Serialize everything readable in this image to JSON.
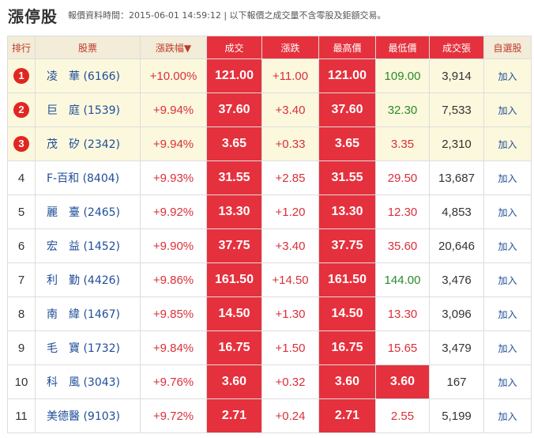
{
  "page": {
    "title": "漲停股",
    "note": "報價資料時間：2015-06-01 14:59:12 | 以下報價之成交量不含零股及鉅額交易。"
  },
  "columns": {
    "rank": "排行",
    "stock": "股票",
    "pct": "漲跌幅▼",
    "price": "成交",
    "change": "漲跌",
    "high": "最高價",
    "low": "最低價",
    "volume": "成交張",
    "watch": "自選股"
  },
  "colors": {
    "header_bg": "#f2ecd8",
    "highlight_bg": "#fbf8dd",
    "limit_up_red": "#e5313d",
    "up_text": "#d9303a",
    "flat_text": "#2a8a2a",
    "link": "#1f4e97"
  },
  "rows": [
    {
      "rank": "1",
      "name": "凌　華",
      "code": "(6166)",
      "pct": "+10.00%",
      "price": "121.00",
      "change": "+11.00",
      "high": "121.00",
      "low": "109.00",
      "volume": "3,914",
      "add": "加入",
      "top3": true,
      "low_red": false,
      "low_color": "flat"
    },
    {
      "rank": "2",
      "name": "巨　庭",
      "code": "(1539)",
      "pct": "+9.94%",
      "price": "37.60",
      "change": "+3.40",
      "high": "37.60",
      "low": "32.30",
      "volume": "7,533",
      "add": "加入",
      "top3": true,
      "low_red": false,
      "low_color": "flat"
    },
    {
      "rank": "3",
      "name": "茂　矽",
      "code": "(2342)",
      "pct": "+9.94%",
      "price": "3.65",
      "change": "+0.33",
      "high": "3.65",
      "low": "3.35",
      "volume": "2,310",
      "add": "加入",
      "top3": true,
      "low_red": false,
      "low_color": "up"
    },
    {
      "rank": "4",
      "name": "F-百和",
      "code": "(8404)",
      "pct": "+9.93%",
      "price": "31.55",
      "change": "+2.85",
      "high": "31.55",
      "low": "29.50",
      "volume": "13,687",
      "add": "加入",
      "top3": false,
      "low_red": false,
      "low_color": "up"
    },
    {
      "rank": "5",
      "name": "麗　臺",
      "code": "(2465)",
      "pct": "+9.92%",
      "price": "13.30",
      "change": "+1.20",
      "high": "13.30",
      "low": "12.30",
      "volume": "4,853",
      "add": "加入",
      "top3": false,
      "low_red": false,
      "low_color": "up"
    },
    {
      "rank": "6",
      "name": "宏　益",
      "code": "(1452)",
      "pct": "+9.90%",
      "price": "37.75",
      "change": "+3.40",
      "high": "37.75",
      "low": "35.60",
      "volume": "20,646",
      "add": "加入",
      "top3": false,
      "low_red": false,
      "low_color": "up"
    },
    {
      "rank": "7",
      "name": "利　勤",
      "code": "(4426)",
      "pct": "+9.86%",
      "price": "161.50",
      "change": "+14.50",
      "high": "161.50",
      "low": "144.00",
      "volume": "3,476",
      "add": "加入",
      "top3": false,
      "low_red": false,
      "low_color": "flat"
    },
    {
      "rank": "8",
      "name": "南　緯",
      "code": "(1467)",
      "pct": "+9.85%",
      "price": "14.50",
      "change": "+1.30",
      "high": "14.50",
      "low": "13.30",
      "volume": "3,096",
      "add": "加入",
      "top3": false,
      "low_red": false,
      "low_color": "up"
    },
    {
      "rank": "9",
      "name": "毛　寶",
      "code": "(1732)",
      "pct": "+9.84%",
      "price": "16.75",
      "change": "+1.50",
      "high": "16.75",
      "low": "15.65",
      "volume": "3,479",
      "add": "加入",
      "top3": false,
      "low_red": false,
      "low_color": "up"
    },
    {
      "rank": "10",
      "name": "科　風",
      "code": "(3043)",
      "pct": "+9.76%",
      "price": "3.60",
      "change": "+0.32",
      "high": "3.60",
      "low": "3.60",
      "volume": "167",
      "add": "加入",
      "top3": false,
      "low_red": true,
      "low_color": "up"
    },
    {
      "rank": "11",
      "name": "美德醫",
      "code": "(9103)",
      "pct": "+9.72%",
      "price": "2.71",
      "change": "+0.24",
      "high": "2.71",
      "low": "2.55",
      "volume": "5,199",
      "add": "加入",
      "top3": false,
      "low_red": false,
      "low_color": "up"
    }
  ]
}
